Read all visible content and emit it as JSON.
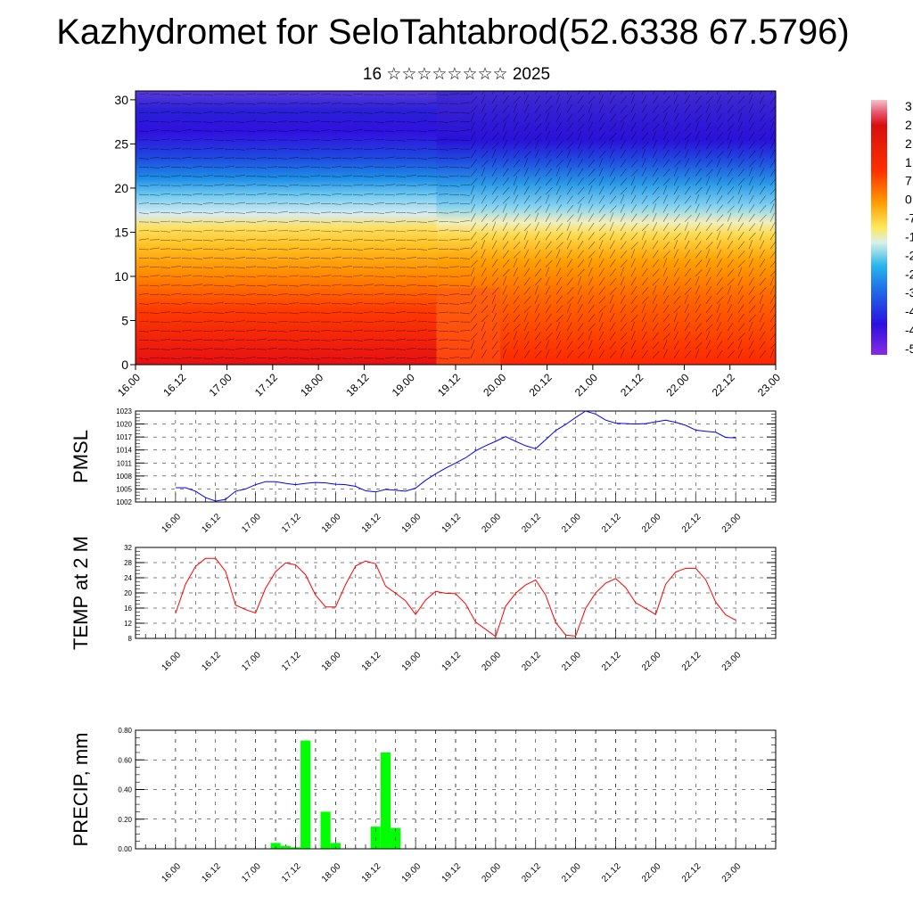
{
  "header": {
    "title": "Kazhydromet for SeloTahtabrod(52.6338 67.5796)",
    "subtitle": "16 ☆☆☆☆☆☆☆☆ 2025"
  },
  "time_labels": [
    "16.00",
    "16.12",
    "17.00",
    "17.12",
    "18.00",
    "18.12",
    "19.00",
    "19.12",
    "20.00",
    "20.12",
    "21.00",
    "21.12",
    "22.00",
    "22.12",
    "23.00"
  ],
  "chart_data": [
    {
      "id": "cross-section",
      "type": "heatmap",
      "ylim": [
        0,
        31
      ],
      "y_ticks": [
        0,
        5,
        10,
        15,
        20,
        25,
        30
      ],
      "overlay": "wind barbs",
      "colorbar_labels": [
        "3",
        "2",
        "2",
        "1",
        "7",
        "0",
        "-7",
        "-1",
        "-2",
        "-2",
        "-3",
        "-4",
        "-4",
        "-5"
      ],
      "colors": [
        "#f2b8c0",
        "#d60f0f",
        "#ff5a00",
        "#ffa500",
        "#ffe85a",
        "#a8e0ef",
        "#28b6ec",
        "#1e5ae6",
        "#3a0ce0",
        "#8a2be2"
      ]
    },
    {
      "id": "pmsl",
      "type": "line",
      "ylabel": "PMSL",
      "ylim": [
        1002,
        1023
      ],
      "y_ticks": [
        1002,
        1005,
        1008,
        1011,
        1014,
        1017,
        1020,
        1023
      ],
      "color": "#0000ff",
      "x_hours": [
        0,
        3,
        6,
        9,
        12,
        15,
        18,
        21,
        24,
        27,
        30,
        33,
        36,
        39,
        42,
        45,
        48,
        51,
        54,
        57,
        60,
        63,
        66,
        69,
        72,
        75,
        78,
        81,
        84,
        87,
        90,
        93,
        96,
        99,
        102,
        105,
        108,
        111,
        114,
        117,
        120,
        123,
        126,
        129,
        132,
        135,
        138,
        141,
        144,
        147,
        150,
        153,
        156,
        159,
        162,
        165,
        168
      ],
      "values": [
        1005.3,
        1005.3,
        1004.5,
        1003.0,
        1002.2,
        1002.6,
        1004.5,
        1005.0,
        1006.0,
        1006.7,
        1006.7,
        1006.3,
        1006.0,
        1006.3,
        1006.5,
        1006.4,
        1006.1,
        1006.0,
        1005.6,
        1004.6,
        1004.3,
        1004.9,
        1004.7,
        1004.5,
        1005.2,
        1007.0,
        1008.5,
        1009.8,
        1011.0,
        1012.2,
        1013.8,
        1015.0,
        1016.0,
        1017.1,
        1016.0,
        1015.0,
        1014.3,
        1016.4,
        1018.5,
        1019.9,
        1021.5,
        1023.0,
        1022.3,
        1020.9,
        1020.2,
        1020.1,
        1020.0,
        1020.1,
        1020.5,
        1020.9,
        1020.4,
        1019.7,
        1018.6,
        1018.3,
        1018.1,
        1016.9,
        1016.8
      ]
    },
    {
      "id": "temp2m",
      "type": "line",
      "ylabel": "TEMP at 2 M",
      "ylim": [
        8,
        32
      ],
      "y_ticks": [
        8,
        12,
        16,
        20,
        24,
        28,
        32
      ],
      "color": "#ff0000",
      "x_hours": [
        0,
        3,
        6,
        9,
        12,
        15,
        18,
        21,
        24,
        27,
        30,
        33,
        36,
        39,
        42,
        45,
        48,
        51,
        54,
        57,
        60,
        63,
        66,
        69,
        72,
        75,
        78,
        81,
        84,
        87,
        90,
        93,
        96,
        99,
        102,
        105,
        108,
        111,
        114,
        117,
        120,
        123,
        126,
        129,
        132,
        135,
        138,
        141,
        144,
        147,
        150,
        153,
        156,
        159,
        162,
        165,
        168
      ],
      "values": [
        14.6,
        22.3,
        27.0,
        29.1,
        29.1,
        25.7,
        16.8,
        15.6,
        14.7,
        21.2,
        25.6,
        27.9,
        27.4,
        24.8,
        19.4,
        16.3,
        16.3,
        22.2,
        27.1,
        28.4,
        27.7,
        21.8,
        19.9,
        17.9,
        14.3,
        18.1,
        20.4,
        19.9,
        19.8,
        17.1,
        12.3,
        10.4,
        8.5,
        16.5,
        19.9,
        22.1,
        23.4,
        19.4,
        12.2,
        8.9,
        8.6,
        15.9,
        20.0,
        22.6,
        23.8,
        21.4,
        17.4,
        15.9,
        14.3,
        22.3,
        25.5,
        26.5,
        26.5,
        23.5,
        17.6,
        14.2,
        12.8
      ]
    },
    {
      "id": "precip",
      "type": "bar",
      "ylabel": "PRECIP, mm",
      "ylim": [
        0,
        0.8
      ],
      "y_ticks": [
        0,
        0.2,
        0.4,
        0.6,
        0.8
      ],
      "y_tick_labels": [
        "0.00",
        "0.20",
        "0.40",
        "0.60",
        "0.80"
      ],
      "color": "#00ff00",
      "bar_width_hours": 3,
      "x_hours": [
        30,
        33,
        36,
        39,
        45,
        48,
        60,
        63,
        66
      ],
      "values": [
        0.04,
        0.02,
        0.01,
        0.73,
        0.25,
        0.04,
        0.15,
        0.65,
        0.14
      ]
    }
  ]
}
